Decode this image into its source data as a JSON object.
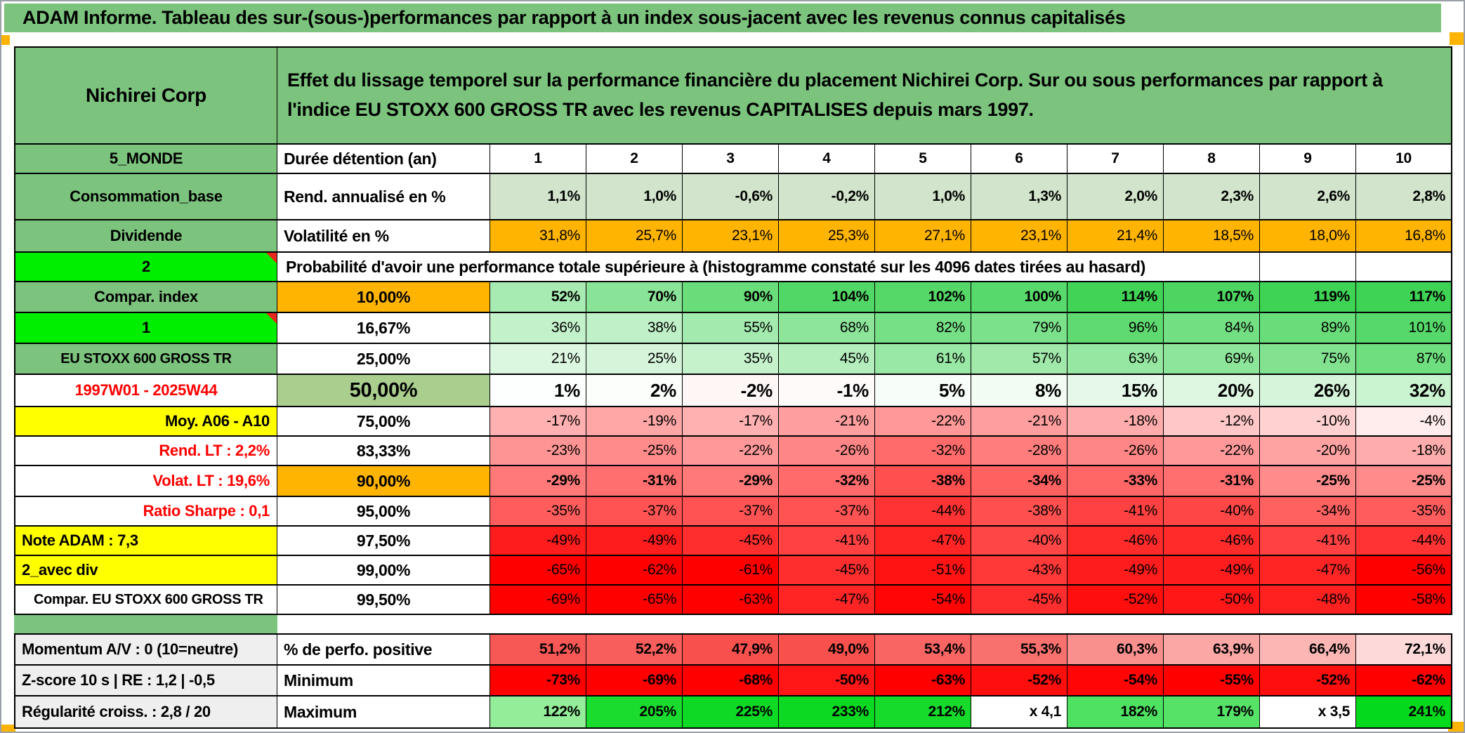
{
  "page_title": "ADAM Informe. Tableau des sur-(sous-)performances par rapport à un index sous-jacent avec les revenus connus capitalisés",
  "colors": {
    "band": "#7CC47E",
    "bright": "#00EF00",
    "orange": "#FFB402",
    "olive": "#A9CE8E",
    "yellow": "#FFFF00",
    "gray": "#EFEFEF",
    "red": "#FF0000",
    "rend_green": "#D2E5CC",
    "scale_green": "#3FD355",
    "scale_red": "#FF0000",
    "perfo_red": "#F7504D",
    "marker_red": "#E8281E",
    "title_bg": "#7CC47E",
    "corner_orange": "#FFB402"
  },
  "table": {
    "corner_label": "Nichirei Corp",
    "description": "Effet du lissage temporel sur la performance financière du placement Nichirei Corp. Sur ou sous performances par rapport à l'indice EU STOXX 600 GROSS TR avec les revenus CAPITALISES depuis mars 1997.",
    "duree": {
      "a": "5_MONDE",
      "b": "Durée détention (an)",
      "cols": [
        "1",
        "2",
        "3",
        "4",
        "5",
        "6",
        "7",
        "8",
        "9",
        "10"
      ]
    },
    "rows_top": [
      {
        "a": {
          "text": "Consommation_base",
          "bg": "band"
        },
        "b": {
          "text": "Rend. annualisé en %",
          "align": "left"
        },
        "cells": [
          "1,1%",
          "1,0%",
          "-0,6%",
          "-0,2%",
          "1,0%",
          "1,3%",
          "2,0%",
          "2,3%",
          "2,6%",
          "2,8%"
        ],
        "fill": "uniform",
        "bg": "rend_green",
        "bold": true
      },
      {
        "a": {
          "text": "Dividende",
          "bg": "band"
        },
        "b": {
          "text": "Volatilité en %",
          "align": "left"
        },
        "cells": [
          "31,8%",
          "25,7%",
          "23,1%",
          "25,3%",
          "27,1%",
          "23,1%",
          "21,4%",
          "18,5%",
          "18,0%",
          "16,8%"
        ],
        "fill": "uniform",
        "bg": "orange",
        "bold": false
      }
    ],
    "proba_band": {
      "a": "2",
      "text": "Probabilité d'avoir une performance totale supérieure à (histogramme constaté sur les 4096 dates tirées au hasard)"
    },
    "rows_mid": [
      {
        "a": {
          "text": "Compar. index",
          "bg": "band"
        },
        "b": {
          "text": "10,00%",
          "bg": "orange"
        },
        "cells": [
          "52%",
          "70%",
          "90%",
          "104%",
          "102%",
          "100%",
          "114%",
          "107%",
          "119%",
          "117%"
        ],
        "fill": "scale",
        "bold": true
      },
      {
        "a": {
          "text": "1",
          "bg": "bright",
          "marker": true
        },
        "b": {
          "text": "16,67%"
        },
        "cells": [
          "36%",
          "38%",
          "55%",
          "68%",
          "82%",
          "79%",
          "96%",
          "84%",
          "89%",
          "101%"
        ],
        "fill": "scale",
        "bold": false
      },
      {
        "a": {
          "text": "EU STOXX 600 GROSS TR",
          "bg": "band",
          "size": "sm"
        },
        "b": {
          "text": "25,00%"
        },
        "cells": [
          "21%",
          "25%",
          "35%",
          "45%",
          "61%",
          "57%",
          "63%",
          "69%",
          "75%",
          "87%"
        ],
        "fill": "scale",
        "bold": false
      },
      {
        "a": {
          "text": "1997W01 - 2025W44",
          "fg": "red"
        },
        "b": {
          "text": "50,00%",
          "bg": "olive",
          "size": "xl"
        },
        "cells": [
          "1%",
          "2%",
          "-2%",
          "-1%",
          "5%",
          "8%",
          "15%",
          "20%",
          "26%",
          "32%"
        ],
        "fill": "scale",
        "bold": true,
        "size": "lg"
      },
      {
        "a": {
          "text": "Moy. A06 - A10",
          "bg": "yellow",
          "align": "right"
        },
        "b": {
          "text": "75,00%"
        },
        "cells": [
          "-17%",
          "-19%",
          "-17%",
          "-21%",
          "-22%",
          "-21%",
          "-18%",
          "-12%",
          "-10%",
          "-4%"
        ],
        "fill": "scale",
        "bold": false
      },
      {
        "a": {
          "text": "Rend. LT :  2,2%",
          "fg": "red",
          "align": "right"
        },
        "b": {
          "text": "83,33%"
        },
        "cells": [
          "-23%",
          "-25%",
          "-22%",
          "-26%",
          "-32%",
          "-28%",
          "-26%",
          "-22%",
          "-20%",
          "-18%"
        ],
        "fill": "scale",
        "bold": false
      },
      {
        "a": {
          "text": "Volat. LT :  19,6%",
          "fg": "red",
          "align": "right"
        },
        "b": {
          "text": "90,00%",
          "bg": "orange"
        },
        "cells": [
          "-29%",
          "-31%",
          "-29%",
          "-32%",
          "-38%",
          "-34%",
          "-33%",
          "-31%",
          "-25%",
          "-25%"
        ],
        "fill": "scale",
        "bold": true
      },
      {
        "a": {
          "text": "Ratio Sharpe :  0,1",
          "fg": "red",
          "align": "right"
        },
        "b": {
          "text": "95,00%"
        },
        "cells": [
          "-35%",
          "-37%",
          "-37%",
          "-37%",
          "-44%",
          "-38%",
          "-41%",
          "-40%",
          "-34%",
          "-35%"
        ],
        "fill": "scale",
        "bold": false
      },
      {
        "a": {
          "text": "Note ADAM : 7,3",
          "bg": "yellow",
          "align": "left"
        },
        "b": {
          "text": "97,50%"
        },
        "cells": [
          "-49%",
          "-49%",
          "-45%",
          "-41%",
          "-47%",
          "-40%",
          "-46%",
          "-46%",
          "-41%",
          "-44%"
        ],
        "fill": "scale",
        "bold": false
      },
      {
        "a": {
          "text": "2_avec div",
          "bg": "yellow",
          "align": "left"
        },
        "b": {
          "text": "99,00%"
        },
        "cells": [
          "-65%",
          "-62%",
          "-61%",
          "-45%",
          "-51%",
          "-43%",
          "-49%",
          "-49%",
          "-47%",
          "-56%"
        ],
        "fill": "scale",
        "bold": false
      },
      {
        "a": {
          "text": "Compar. EU STOXX 600 GROSS TR",
          "align": "left",
          "size": "sm",
          "indent": true
        },
        "b": {
          "text": "99,50%"
        },
        "cells": [
          "-69%",
          "-65%",
          "-63%",
          "-47%",
          "-54%",
          "-45%",
          "-52%",
          "-50%",
          "-48%",
          "-58%"
        ],
        "fill": "scale",
        "bold": false
      }
    ],
    "rows_bottom": [
      {
        "a": {
          "text": "Momentum A/V : 0 (10=neutre)",
          "bg": "gray",
          "align": "left"
        },
        "b": {
          "text": "% de perfo. positive",
          "align": "left"
        },
        "cells": [
          "51,2%",
          "52,2%",
          "47,9%",
          "49,0%",
          "53,4%",
          "55,3%",
          "60,3%",
          "63,9%",
          "66,4%",
          "72,1%"
        ],
        "fill": "perfo",
        "bold": true
      },
      {
        "a": {
          "text": "Z-score 10 s | RE : 1,2 | -0,5",
          "bg": "gray",
          "align": "left"
        },
        "b": {
          "text": "Minimum",
          "align": "left"
        },
        "cells": [
          "-73%",
          "-69%",
          "-68%",
          "-50%",
          "-63%",
          "-52%",
          "-54%",
          "-55%",
          "-52%",
          "-62%"
        ],
        "fill": "scale",
        "bold": true
      },
      {
        "a": {
          "text": "Régularité croiss. : 2,8 / 20",
          "bg": "gray",
          "align": "left"
        },
        "b": {
          "text": "Maximum",
          "align": "left"
        },
        "cells": [
          "122%",
          "205%",
          "225%",
          "233%",
          "212%",
          "x 4,1",
          "182%",
          "179%",
          "x 3,5",
          "241%"
        ],
        "fill": "explicit",
        "cell_colors": [
          "#93ED99",
          "#1ADC2E",
          "#0EDA25",
          "#0BD922",
          "#16DB2B",
          "#FFFFFF",
          "#4FE161",
          "#55E267",
          "#FFFFFF",
          "#05D91C"
        ],
        "bold": true
      }
    ]
  }
}
